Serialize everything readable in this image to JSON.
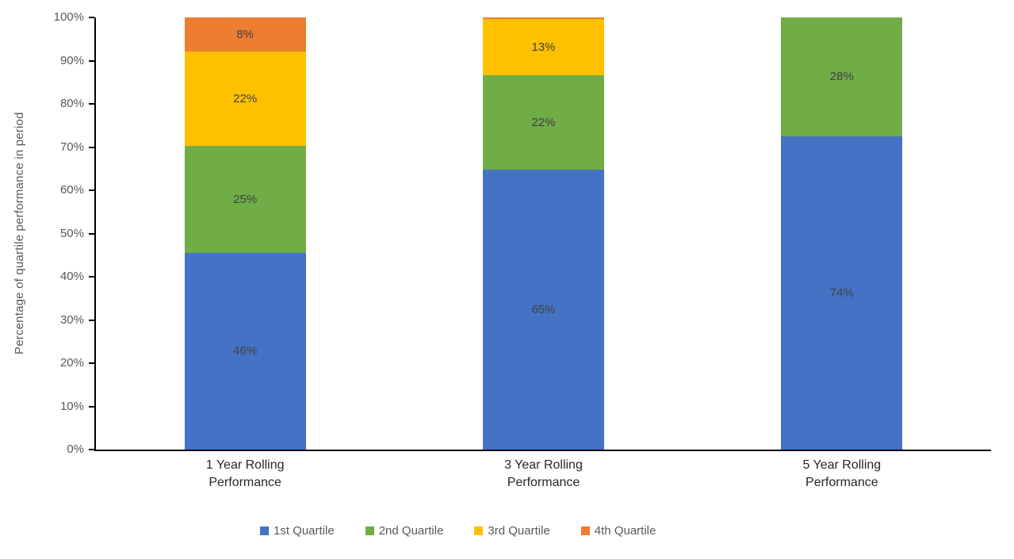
{
  "chart_data": {
    "type": "bar",
    "stacked": true,
    "title": "",
    "xlabel": "",
    "ylabel": "Percentage of quartile performance in period",
    "ylim": [
      0,
      100
    ],
    "grid": false,
    "legend_position": "bottom",
    "y_ticks": [
      "0%",
      "10%",
      "20%",
      "30%",
      "40%",
      "50%",
      "60%",
      "70%",
      "80%",
      "90%",
      "100%"
    ],
    "categories": [
      {
        "lines": [
          "1 Year Rolling",
          "Performance"
        ]
      },
      {
        "lines": [
          "3 Year Rolling",
          "Performance"
        ]
      },
      {
        "lines": [
          "5 Year Rolling",
          "Performance"
        ]
      }
    ],
    "series": [
      {
        "name": "1st Quartile",
        "color": "#4472C4",
        "values": [
          46,
          65,
          74
        ],
        "labels": [
          "46%",
          "65%",
          "74%"
        ]
      },
      {
        "name": "2nd Quartile",
        "color": "#70AD47",
        "values": [
          25,
          22,
          28
        ],
        "labels": [
          "25%",
          "22%",
          "28%"
        ]
      },
      {
        "name": "3rd Quartile",
        "color": "#FFC000",
        "values": [
          22,
          13,
          0
        ],
        "labels": [
          "22%",
          "13%",
          ""
        ]
      },
      {
        "name": "4th Quartile",
        "color": "#ED7D31",
        "values": [
          8,
          0.4,
          0
        ],
        "labels": [
          "8%",
          "",
          ""
        ]
      }
    ],
    "style": {
      "axis_line_color": "#000000",
      "tick_label_color": "#595959",
      "axis_title_color": "#595959",
      "category_label_color": "#262626",
      "data_label_color": "#404040",
      "legend_text_color": "#595959",
      "background": "#ffffff"
    }
  }
}
